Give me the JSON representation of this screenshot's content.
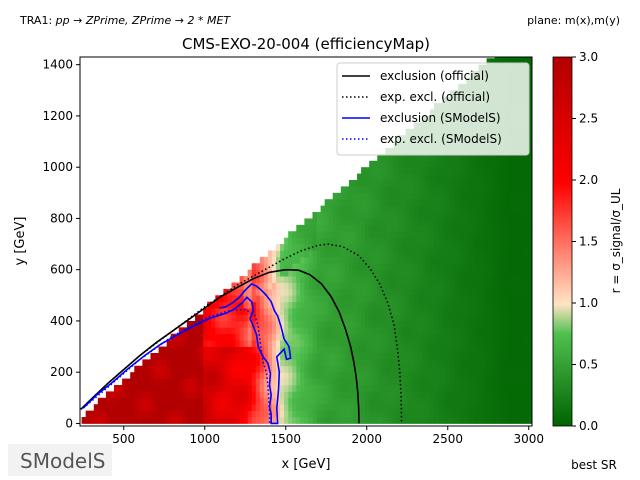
{
  "header": {
    "left_prefix": "TRA1: ",
    "left_process": "pp → ZPrime, ZPrime → 2 * MET",
    "right": "plane: m(x),m(y)"
  },
  "footer": {
    "right": "best SR",
    "logo_text": "SModelS"
  },
  "chart_data": {
    "type": "heatmap",
    "title": "CMS-EXO-20-004 (efficiencyMap)",
    "xlabel": "x [GeV]",
    "ylabel": "y [GeV]",
    "xlim": [
      230,
      3020
    ],
    "ylim": [
      -10,
      1430
    ],
    "xticks": [
      500,
      1000,
      1500,
      2000,
      2500,
      3000
    ],
    "yticks": [
      0,
      200,
      400,
      600,
      800,
      1000,
      1200,
      1400
    ],
    "grid": false,
    "legend_position": "top-right",
    "colorbar": {
      "label": "r = σ_signal/σ_UL",
      "range": [
        0.0,
        3.0
      ],
      "ticks": [
        "0.0",
        "0.5",
        "1.0",
        "1.5",
        "2.0",
        "2.5",
        "3.0"
      ],
      "colormap": [
        "#006400",
        "#90ee90",
        "#ffe4c4",
        "#ff0000",
        "#b20000"
      ]
    },
    "series": [
      {
        "name": "exclusion (official)",
        "color": "#000000",
        "dash": "solid",
        "points": [
          [
            235,
            55
          ],
          [
            300,
            95
          ],
          [
            400,
            155
          ],
          [
            500,
            210
          ],
          [
            600,
            265
          ],
          [
            700,
            315
          ],
          [
            800,
            360
          ],
          [
            900,
            405
          ],
          [
            1000,
            450
          ],
          [
            1100,
            495
          ],
          [
            1200,
            530
          ],
          [
            1300,
            565
          ],
          [
            1400,
            590
          ],
          [
            1500,
            600
          ],
          [
            1580,
            598
          ],
          [
            1650,
            580
          ],
          [
            1720,
            545
          ],
          [
            1780,
            495
          ],
          [
            1830,
            435
          ],
          [
            1870,
            365
          ],
          [
            1900,
            300
          ],
          [
            1920,
            240
          ],
          [
            1935,
            180
          ],
          [
            1945,
            120
          ],
          [
            1950,
            60
          ],
          [
            1952,
            0
          ]
        ]
      },
      {
        "name": "exp. excl. (official)",
        "color": "#000000",
        "dash": "dotted",
        "points": [
          [
            235,
            55
          ],
          [
            400,
            155
          ],
          [
            600,
            265
          ],
          [
            800,
            360
          ],
          [
            1000,
            455
          ],
          [
            1200,
            540
          ],
          [
            1400,
            610
          ],
          [
            1500,
            645
          ],
          [
            1600,
            675
          ],
          [
            1700,
            695
          ],
          [
            1760,
            700
          ],
          [
            1850,
            690
          ],
          [
            1950,
            655
          ],
          [
            2020,
            605
          ],
          [
            2080,
            545
          ],
          [
            2130,
            470
          ],
          [
            2170,
            380
          ],
          [
            2190,
            290
          ],
          [
            2205,
            190
          ],
          [
            2212,
            100
          ],
          [
            2215,
            0
          ]
        ]
      },
      {
        "name": "exclusion (SModelS)",
        "color": "#0000ff",
        "dash": "solid",
        "points": [
          [
            250,
            60
          ],
          [
            330,
            110
          ],
          [
            430,
            160
          ],
          [
            530,
            215
          ],
          [
            630,
            265
          ],
          [
            730,
            310
          ],
          [
            830,
            345
          ],
          [
            930,
            380
          ],
          [
            1030,
            410
          ],
          [
            1130,
            430
          ],
          [
            1180,
            445
          ],
          [
            1230,
            470
          ],
          [
            1260,
            492
          ],
          [
            1290,
            475
          ],
          [
            1300,
            440
          ],
          [
            1280,
            410
          ],
          [
            1300,
            380
          ],
          [
            1320,
            345
          ],
          [
            1330,
            300
          ],
          [
            1360,
            260
          ],
          [
            1390,
            235
          ],
          [
            1405,
            195
          ],
          [
            1400,
            150
          ],
          [
            1410,
            110
          ],
          [
            1400,
            65
          ],
          [
            1410,
            35
          ],
          [
            1410,
            0
          ],
          [
            1450,
            0
          ],
          [
            1445,
            60
          ],
          [
            1455,
            130
          ],
          [
            1460,
            200
          ],
          [
            1445,
            260
          ],
          [
            1490,
            290
          ],
          [
            1505,
            250
          ],
          [
            1530,
            255
          ],
          [
            1520,
            300
          ],
          [
            1490,
            330
          ],
          [
            1470,
            380
          ],
          [
            1450,
            420
          ],
          [
            1430,
            440
          ],
          [
            1410,
            475
          ],
          [
            1380,
            500
          ],
          [
            1350,
            520
          ],
          [
            1320,
            535
          ],
          [
            1290,
            545
          ],
          [
            1250,
            520
          ],
          [
            1210,
            490
          ],
          [
            1170,
            470
          ],
          [
            1130,
            455
          ],
          [
            1090,
            450
          ]
        ]
      },
      {
        "name": "exp. excl. (SModelS)",
        "color": "#0000ff",
        "dash": "dotted",
        "points": [
          [
            250,
            60
          ],
          [
            400,
            140
          ],
          [
            600,
            250
          ],
          [
            800,
            340
          ],
          [
            1000,
            410
          ],
          [
            1150,
            440
          ],
          [
            1250,
            445
          ],
          [
            1310,
            420
          ],
          [
            1330,
            380
          ],
          [
            1340,
            330
          ],
          [
            1350,
            280
          ],
          [
            1360,
            240
          ],
          [
            1380,
            200
          ],
          [
            1390,
            150
          ],
          [
            1395,
            100
          ],
          [
            1400,
            40
          ],
          [
            1400,
            0
          ]
        ]
      }
    ],
    "grid_cell_values": [
      {
        "region": "above diagonal (no data)",
        "value": null
      },
      {
        "region": "x < 1000, low y",
        "value": 3.0
      },
      {
        "region": "x ≈ 1000–1250",
        "value": 2.4
      },
      {
        "region": "x ≈ 1300–1450",
        "value": 1.1
      },
      {
        "region": "x ≈ 1500–1650",
        "value": 0.7
      },
      {
        "region": "x ≈ 1700–1900",
        "value": 0.35
      },
      {
        "region": "x > 2000",
        "value": 0.1
      }
    ]
  }
}
